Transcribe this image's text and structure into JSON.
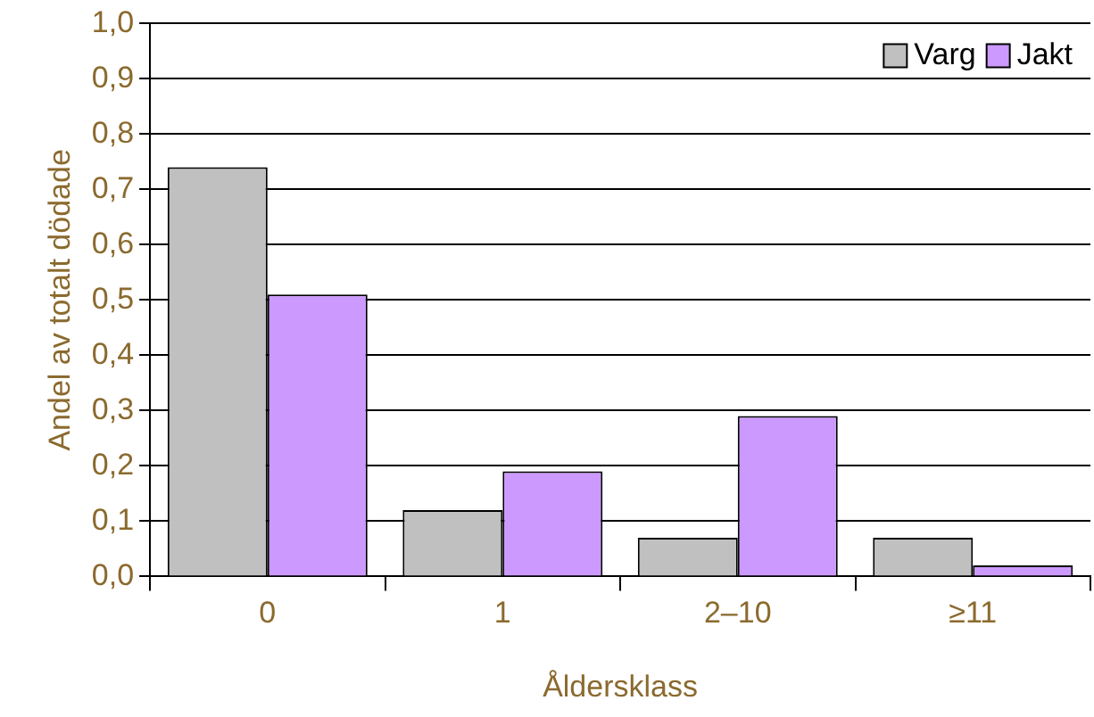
{
  "chart_data": {
    "type": "bar",
    "xlabel": "Åldersklass",
    "ylabel": "Andel av totalt dödade",
    "categories": [
      "0",
      "1",
      "2–10",
      "≥11"
    ],
    "series": [
      {
        "name": "Varg",
        "color": "#c0c0c0",
        "values": [
          0.74,
          0.12,
          0.07,
          0.07
        ]
      },
      {
        "name": "Jakt",
        "color": "#cc99ff",
        "values": [
          0.51,
          0.19,
          0.29,
          0.02
        ]
      }
    ],
    "ylim": [
      0,
      1
    ],
    "yticks": [
      {
        "value": 0,
        "label": "0,0"
      },
      {
        "value": 0.1,
        "label": "0,1"
      },
      {
        "value": 0.2,
        "label": "0,2"
      },
      {
        "value": 0.3,
        "label": "0,3"
      },
      {
        "value": 0.4,
        "label": "0,4"
      },
      {
        "value": 0.5,
        "label": "0,5"
      },
      {
        "value": 0.6,
        "label": "0,6"
      },
      {
        "value": 0.7,
        "label": "0,7"
      },
      {
        "value": 0.8,
        "label": "0,8"
      },
      {
        "value": 0.9,
        "label": "0,9"
      },
      {
        "value": 1,
        "label": "1,0"
      }
    ],
    "grid": "y",
    "legend": "top right"
  }
}
